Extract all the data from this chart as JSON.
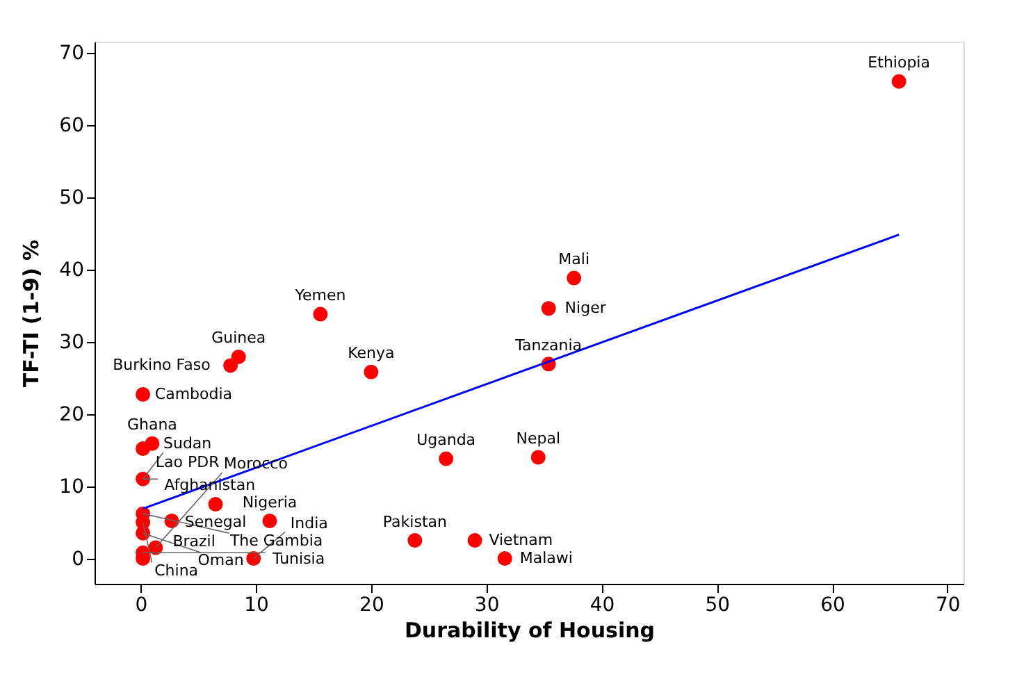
{
  "chart_data": {
    "type": "scatter",
    "xlabel": "Durability of Housing",
    "ylabel": "TF-TI (1-9) %",
    "xlim": [
      -4,
      71.4
    ],
    "ylim": [
      -3.5,
      71.5
    ],
    "xticks": [
      0,
      10,
      20,
      30,
      40,
      50,
      60,
      70
    ],
    "yticks": [
      0,
      10,
      20,
      30,
      40,
      50,
      60,
      70
    ],
    "grid": false,
    "marker": "circle",
    "series": [
      {
        "type": "scatter",
        "color": "#ff0000",
        "x": [
          65.8,
          37.6,
          35.4,
          35.4,
          15.6,
          20,
          8.5,
          7.8,
          0.2,
          1,
          0.2,
          0.2,
          6.5,
          11.2,
          2.7,
          0.2,
          0.2,
          0.2,
          1.3,
          0.2,
          0.2,
          9.8,
          23.8,
          29,
          31.6,
          26.5,
          34.5
        ],
        "values": [
          66,
          38.8,
          34.6,
          26.9,
          33.8,
          25.8,
          27.9,
          26.7,
          22.7,
          15.9,
          15.2,
          11,
          7.5,
          5.2,
          5.2,
          6.2,
          5,
          3.5,
          1.5,
          0.8,
          0,
          0,
          2.5,
          2.5,
          0,
          13.8,
          14
        ]
      },
      {
        "type": "line",
        "color": "#0000ff",
        "line_style": "solid",
        "marker": "none",
        "x": [
          0.2,
          65.8
        ],
        "values": [
          6.9,
          44.8
        ]
      }
    ],
    "annotations": [
      {
        "text": "Ethiopia",
        "x": 65.8,
        "y": 66
      },
      {
        "text": "Mali",
        "x": 37.6,
        "y": 38.8
      },
      {
        "text": "Niger",
        "x": 35.4,
        "y": 34.6
      },
      {
        "text": "Tanzania",
        "x": 35.4,
        "y": 26.9
      },
      {
        "text": "Yemen",
        "x": 15.6,
        "y": 33.8
      },
      {
        "text": "Kenya",
        "x": 20,
        "y": 25.8
      },
      {
        "text": "Guinea",
        "x": 8.5,
        "y": 27.9
      },
      {
        "text": "Burkino Faso",
        "x": 7.8,
        "y": 26.7
      },
      {
        "text": "Cambodia",
        "x": 0.2,
        "y": 22.7
      },
      {
        "text": "Ghana",
        "x": 1,
        "y": 15.9
      },
      {
        "text": "Lao PDR",
        "x": 0.2,
        "y": 15.2
      },
      {
        "text": "Afghanistan",
        "x": 0.2,
        "y": 11
      },
      {
        "text": "Sudan",
        "x": 0.2,
        "y": 11
      },
      {
        "text": "Senegal",
        "x": 6.5,
        "y": 7.5
      },
      {
        "text": "Nigeria",
        "x": 11.2,
        "y": 5.2
      },
      {
        "text": "Brazil",
        "x": 2.7,
        "y": 5.2
      },
      {
        "text": "The Gambia",
        "x": 0.2,
        "y": 6.2
      },
      {
        "text": "China",
        "x": 0.2,
        "y": 5
      },
      {
        "text": "Oman",
        "x": 0.2,
        "y": 3.5
      },
      {
        "text": "Morocco",
        "x": 1.3,
        "y": 1.5
      },
      {
        "text": "Tunisia",
        "x": 0.2,
        "y": 0.8
      },
      {
        "text": "India",
        "x": 9.8,
        "y": 0
      },
      {
        "text": "Pakistan",
        "x": 23.8,
        "y": 2.5
      },
      {
        "text": "Vietnam",
        "x": 29,
        "y": 2.5
      },
      {
        "text": "Malawi",
        "x": 31.6,
        "y": 0
      },
      {
        "text": "Uganda",
        "x": 26.5,
        "y": 13.8
      },
      {
        "text": "Nepal",
        "x": 34.5,
        "y": 14
      }
    ]
  }
}
